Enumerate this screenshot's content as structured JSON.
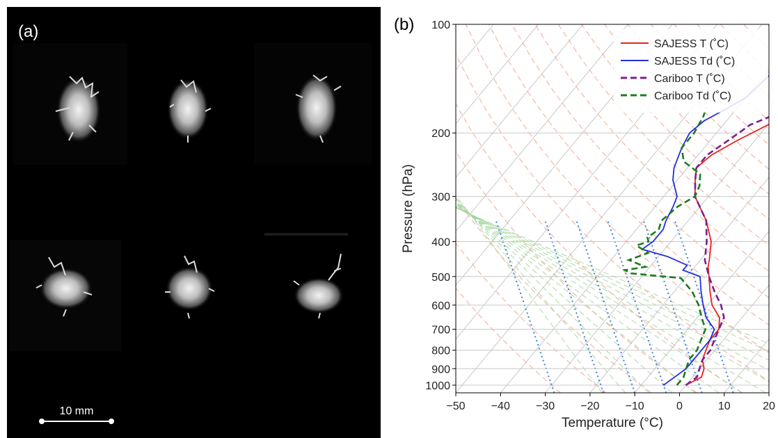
{
  "panel_a": {
    "label": "(a)",
    "scale_bar_label": "10 mm"
  },
  "panel_b": {
    "label": "(b)"
  },
  "chart_data": {
    "type": "line",
    "subtype": "skew-T log-P diagram",
    "xlabel": "Temperature (°C)",
    "ylabel": "Pressure (hPa)",
    "xlim": [
      -50,
      20
    ],
    "ylim": [
      1050,
      100
    ],
    "y_scale": "log",
    "x_ticks": [
      -50,
      -40,
      -30,
      -20,
      -10,
      0,
      10,
      20
    ],
    "x_tick_labels": [
      "−50",
      "−40",
      "−30",
      "−20",
      "−10",
      "0",
      "10",
      "20"
    ],
    "y_ticks": [
      100,
      200,
      300,
      400,
      500,
      600,
      700,
      800,
      900,
      1000
    ],
    "grid": true,
    "legend_position": "top-right",
    "background_lines": [
      "dry adiabats (light red, dashed)",
      "moist adiabats (light green, dashed)",
      "mixing ratio lines (blue, dotted)",
      "isotherms (gray, skewed)"
    ],
    "series": [
      {
        "name": "SAJESS T (˚C)",
        "color": "#e8221e",
        "style": "solid",
        "points": [
          [
            1000,
            0
          ],
          [
            950,
            2
          ],
          [
            900,
            1
          ],
          [
            850,
            -1
          ],
          [
            800,
            -2
          ],
          [
            750,
            -3
          ],
          [
            700,
            -3
          ],
          [
            650,
            -5
          ],
          [
            600,
            -9
          ],
          [
            550,
            -12
          ],
          [
            500,
            -15
          ],
          [
            470,
            -17
          ],
          [
            450,
            -18
          ],
          [
            400,
            -21
          ],
          [
            350,
            -26
          ],
          [
            300,
            -33
          ],
          [
            270,
            -36
          ],
          [
            250,
            -38
          ],
          [
            230,
            -37
          ],
          [
            210,
            -34
          ],
          [
            190,
            -30
          ],
          [
            175,
            -26
          ],
          [
            160,
            -24
          ],
          [
            140,
            -23
          ],
          [
            120,
            -21
          ],
          [
            100,
            -20
          ]
        ]
      },
      {
        "name": "SAJESS Td (˚C)",
        "color": "#1f2ee0",
        "style": "solid",
        "points": [
          [
            1000,
            -5
          ],
          [
            950,
            -4
          ],
          [
            900,
            -3
          ],
          [
            850,
            -3
          ],
          [
            800,
            -3
          ],
          [
            750,
            -3
          ],
          [
            700,
            -4
          ],
          [
            650,
            -8
          ],
          [
            600,
            -11
          ],
          [
            550,
            -14
          ],
          [
            500,
            -17
          ],
          [
            480,
            -22
          ],
          [
            465,
            -22
          ],
          [
            440,
            -28
          ],
          [
            420,
            -35
          ],
          [
            400,
            -34
          ],
          [
            370,
            -34
          ],
          [
            350,
            -35
          ],
          [
            320,
            -36
          ],
          [
            300,
            -37
          ],
          [
            270,
            -41
          ],
          [
            250,
            -43
          ],
          [
            220,
            -45
          ],
          [
            200,
            -46
          ],
          [
            185,
            -45
          ],
          [
            170,
            -42
          ],
          [
            160,
            -40
          ],
          [
            140,
            -39
          ],
          [
            120,
            -38
          ],
          [
            100,
            -37
          ]
        ]
      },
      {
        "name": "Cariboo T (˚C)",
        "color": "#7b1f8c",
        "style": "dashed",
        "points": [
          [
            1000,
            0
          ],
          [
            950,
            1
          ],
          [
            900,
            0
          ],
          [
            850,
            -1
          ],
          [
            800,
            -1
          ],
          [
            750,
            -2
          ],
          [
            700,
            -3
          ],
          [
            650,
            -4
          ],
          [
            600,
            -7
          ],
          [
            550,
            -11
          ],
          [
            500,
            -15
          ],
          [
            450,
            -19
          ],
          [
            400,
            -22
          ],
          [
            350,
            -26
          ],
          [
            300,
            -33
          ],
          [
            270,
            -36
          ],
          [
            250,
            -38
          ],
          [
            230,
            -38
          ],
          [
            210,
            -36
          ],
          [
            190,
            -34
          ],
          [
            180,
            -31
          ],
          [
            170,
            -29
          ],
          [
            160,
            -25
          ],
          [
            140,
            -24
          ],
          [
            120,
            -22
          ],
          [
            100,
            -20
          ]
        ]
      },
      {
        "name": "Cariboo Td (˚C)",
        "color": "#1e7b1e",
        "style": "dashed",
        "points": [
          [
            1000,
            -2
          ],
          [
            950,
            -2
          ],
          [
            900,
            -3
          ],
          [
            850,
            -4
          ],
          [
            800,
            -4
          ],
          [
            750,
            -5
          ],
          [
            700,
            -6
          ],
          [
            650,
            -9
          ],
          [
            600,
            -12
          ],
          [
            550,
            -16
          ],
          [
            505,
            -21
          ],
          [
            490,
            -33
          ],
          [
            480,
            -35
          ],
          [
            470,
            -31
          ],
          [
            450,
            -36
          ],
          [
            430,
            -33
          ],
          [
            410,
            -37
          ],
          [
            400,
            -35
          ],
          [
            390,
            -36
          ],
          [
            370,
            -35
          ],
          [
            350,
            -36
          ],
          [
            320,
            -35
          ],
          [
            300,
            -33
          ],
          [
            280,
            -34
          ],
          [
            260,
            -36
          ],
          [
            240,
            -42
          ],
          [
            220,
            -45
          ],
          [
            200,
            -45
          ],
          [
            180,
            -46
          ],
          [
            170,
            -47
          ]
        ]
      }
    ]
  }
}
